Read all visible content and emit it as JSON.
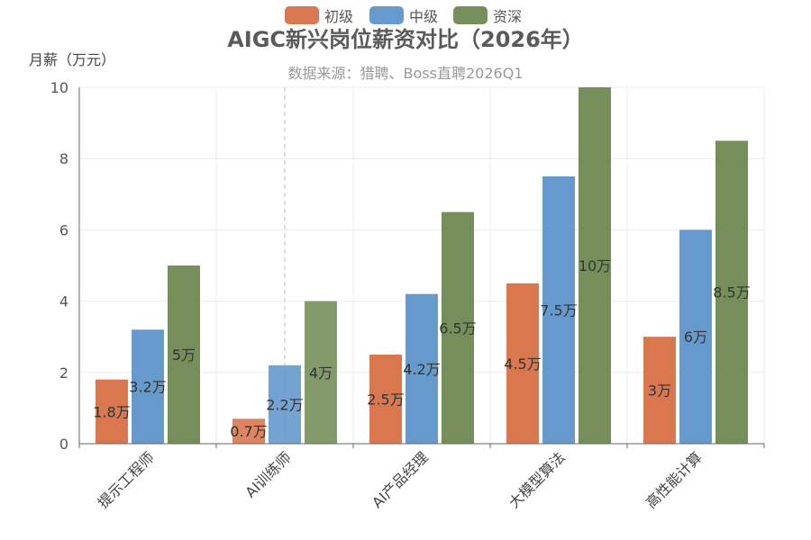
{
  "chart_data": {
    "type": "bar",
    "title": "AIGC新兴岗位薪资对比（2026年）",
    "subtitle": "数据来源：猎聘、Boss直聘2026Q1",
    "ylabel": "月薪（万元）",
    "xlabel": "",
    "ylim": [
      0,
      10
    ],
    "yticks": [
      0,
      2,
      4,
      6,
      8,
      10
    ],
    "grid": true,
    "legend_position": "top-center",
    "categories": [
      "提示工程师",
      "AI训练师",
      "AI产品经理",
      "大模型算法",
      "高性能计算"
    ],
    "series": [
      {
        "name": "初级",
        "color": "#d9774f",
        "values": [
          1.8,
          0.7,
          2.5,
          4.5,
          3
        ],
        "labels": [
          "1.8万",
          "0.7万",
          "2.5万",
          "4.5万",
          "3万"
        ]
      },
      {
        "name": "中级",
        "color": "#6699cc",
        "values": [
          3.2,
          2.2,
          4.2,
          7.5,
          6
        ],
        "labels": [
          "3.2万",
          "2.2万",
          "4.2万",
          "7.5万",
          "6万"
        ]
      },
      {
        "name": "资深",
        "color": "#768f5a",
        "values": [
          5,
          4,
          6.5,
          10,
          8.5
        ],
        "labels": [
          "5万",
          "4万",
          "6.5万",
          "10万",
          "8.5万"
        ]
      }
    ],
    "highlight": {
      "category_index": 1,
      "note": "hover"
    }
  }
}
